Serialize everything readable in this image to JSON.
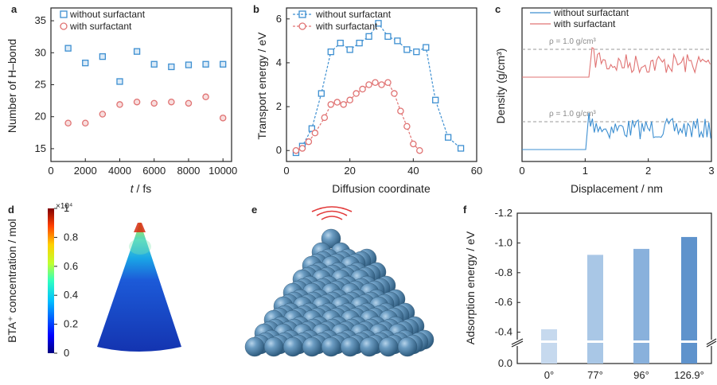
{
  "colors": {
    "blue": "#3d8fd1",
    "red": "#e07373",
    "bar1": "#c6d9ee",
    "bar2": "#a9c7e6",
    "bar3": "#89b1dc",
    "bar4": "#5f93cc",
    "sphere": "#5c8db3",
    "grey": "#9a9a9a"
  },
  "chart_data": [
    {
      "panel": "a",
      "type": "scatter",
      "xlabel": "t / fs",
      "ylabel": "Number of H–bond",
      "xlim": [
        0,
        10500
      ],
      "ylim": [
        13,
        37
      ],
      "xticks": [
        0,
        2000,
        4000,
        6000,
        8000,
        10000
      ],
      "yticks": [
        15,
        20,
        25,
        30,
        35
      ],
      "legend_position": "top-left",
      "series": [
        {
          "name": "without surfactant",
          "marker": "square",
          "color": "#3d8fd1",
          "x": [
            1000,
            2000,
            3000,
            4000,
            5000,
            6000,
            7000,
            8000,
            9000,
            10000
          ],
          "y": [
            30.7,
            28.4,
            29.4,
            25.5,
            30.2,
            28.2,
            27.8,
            28.1,
            28.2,
            28.2
          ]
        },
        {
          "name": "with surfactant",
          "marker": "circle",
          "color": "#e07373",
          "x": [
            1000,
            2000,
            3000,
            4000,
            5000,
            6000,
            7000,
            8000,
            9000,
            10000
          ],
          "y": [
            19.0,
            19.0,
            20.4,
            21.9,
            22.3,
            22.1,
            22.3,
            22.1,
            23.1,
            19.8
          ]
        }
      ]
    },
    {
      "panel": "b",
      "type": "line",
      "xlabel": "Diffusion coordinate",
      "ylabel": "Transport energy / eV",
      "xlim": [
        0,
        60
      ],
      "ylim": [
        -0.5,
        6.5
      ],
      "xticks": [
        0,
        20,
        40,
        60
      ],
      "yticks": [
        0,
        2,
        4,
        6
      ],
      "legend_position": "top",
      "series": [
        {
          "name": "without surfactant",
          "marker": "square",
          "color": "#3d8fd1",
          "dashed": true,
          "x": [
            3,
            5,
            8,
            11,
            14,
            17,
            20,
            23,
            26,
            29,
            32,
            35,
            38,
            41,
            44,
            47,
            51,
            55
          ],
          "y": [
            -0.1,
            0.2,
            1.0,
            2.6,
            4.5,
            4.9,
            4.6,
            4.9,
            5.2,
            5.8,
            5.2,
            5.0,
            4.6,
            4.5,
            4.7,
            2.3,
            0.6,
            0.1
          ]
        },
        {
          "name": "with surfactant",
          "marker": "circle",
          "color": "#e07373",
          "dashed": true,
          "x": [
            3,
            5,
            7,
            9,
            12,
            14,
            16,
            18,
            20,
            22,
            24,
            26,
            28,
            30,
            32,
            34,
            36,
            38,
            40,
            42
          ],
          "y": [
            0.0,
            0.1,
            0.4,
            0.8,
            1.5,
            2.1,
            2.2,
            2.1,
            2.3,
            2.6,
            2.8,
            3.0,
            3.1,
            3.0,
            3.1,
            2.6,
            1.8,
            1.1,
            0.3,
            0.0
          ]
        }
      ]
    },
    {
      "panel": "c",
      "type": "line",
      "xlabel": "Displacement / nm",
      "ylabel": "Density (g/cm³)",
      "xlim": [
        0,
        3
      ],
      "xticks": [
        0,
        1,
        2,
        3
      ],
      "legend_position": "top-left",
      "reference_label": "ρ = 1.0 g/cm³",
      "series": [
        {
          "name": "without surfactant",
          "color": "#3d8fd1"
        },
        {
          "name": "with surfactant",
          "color": "#e07373"
        }
      ]
    },
    {
      "panel": "d",
      "type": "heatmap",
      "colorbar_label": "BTA⁺ concentration / mol",
      "colorbar_exponent": "×10⁴",
      "colorbar_ticks": [
        "0",
        "0.2",
        "0.4",
        "0.6",
        "0.8",
        "1"
      ]
    },
    {
      "panel": "f",
      "type": "bar",
      "ylabel": "Adsorption energy / eV",
      "categories": [
        "0°",
        "77°",
        "96°",
        "126.9°"
      ],
      "values": [
        -0.42,
        -0.92,
        -0.96,
        -1.04
      ],
      "ylim": [
        0,
        -1.2
      ],
      "yticks": [
        "0.0",
        "-0.4",
        "-0.6",
        "-0.8",
        "-1.0",
        "-1.2"
      ],
      "axis_break": [
        -0.1,
        -0.35
      ]
    }
  ],
  "panels": {
    "e": "e"
  }
}
